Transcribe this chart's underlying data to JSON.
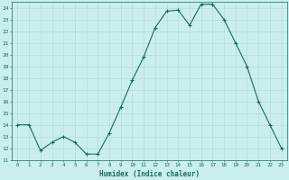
{
  "x": [
    0,
    1,
    2,
    3,
    4,
    5,
    6,
    7,
    8,
    9,
    10,
    11,
    12,
    13,
    14,
    15,
    16,
    17,
    18,
    19,
    20,
    21,
    22,
    23
  ],
  "y": [
    14,
    14,
    11.8,
    12.5,
    13,
    12.5,
    11.5,
    11.5,
    13.3,
    15.5,
    17.8,
    19.8,
    22.3,
    23.7,
    23.8,
    22.5,
    24.3,
    24.3,
    23.0,
    21.0,
    19.0,
    16.0,
    14.0,
    12.0
  ],
  "xlabel": "Humidex (Indice chaleur)",
  "ylim": [
    11,
    24.5
  ],
  "xlim": [
    -0.5,
    23.5
  ],
  "yticks": [
    11,
    12,
    13,
    14,
    15,
    16,
    17,
    18,
    19,
    20,
    21,
    22,
    23,
    24
  ],
  "xticks": [
    0,
    1,
    2,
    3,
    4,
    5,
    6,
    7,
    8,
    9,
    10,
    11,
    12,
    13,
    14,
    15,
    16,
    17,
    18,
    19,
    20,
    21,
    22,
    23
  ],
  "line_color": "#1a6b5a",
  "marker": "+",
  "bg_color": "#c8eeee",
  "grid_color": "#b8dcd8",
  "tick_color": "#1a6b5a",
  "label_color": "#1a6b5a",
  "font_family": "monospace"
}
